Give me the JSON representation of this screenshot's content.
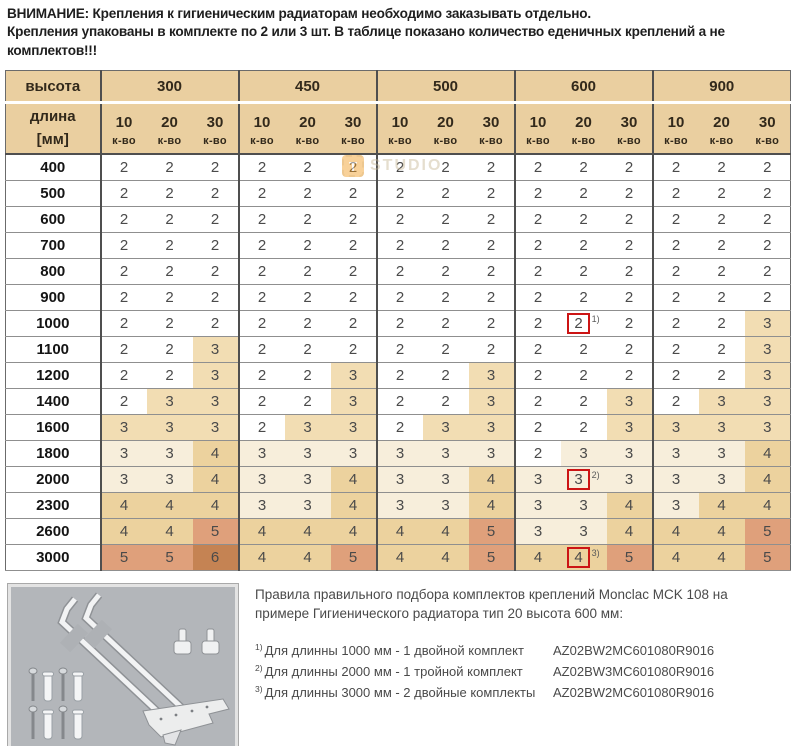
{
  "warning": {
    "line1": "ВНИМАНИЕ: Крепления к гигиеническим радиаторам необходимо заказывать отдельно.",
    "line2": "Крепления упакованы в комплекте по 2 или 3 шт. В таблице показано количество еденичных креплений а не комплектов!!!"
  },
  "watermark": {
    "letter": "T",
    "text": "STUDIO"
  },
  "table": {
    "corner": "высота",
    "row_head": {
      "label": "длина",
      "unit": "[мм]"
    },
    "groups": [
      "300",
      "450",
      "500",
      "600",
      "900"
    ],
    "subcols": [
      "10",
      "20",
      "30"
    ],
    "subunit": "к-во",
    "legend_colors": {
      "w": "#ffffff",
      "t": "#f2ddb3",
      "c": "#f7eedb",
      "d": "#ecd29e",
      "s": "#dfa07b",
      "b": "#c58353"
    },
    "mark_box_color": "#cc1414",
    "rows": [
      {
        "len": "400",
        "cells": [
          "2w",
          "2w",
          "2w",
          "2w",
          "2w",
          "2w",
          "2w",
          "2w",
          "2w",
          "2w",
          "2w",
          "2w",
          "2w",
          "2w",
          "2w"
        ]
      },
      {
        "len": "500",
        "cells": [
          "2w",
          "2w",
          "2w",
          "2w",
          "2w",
          "2w",
          "2w",
          "2w",
          "2w",
          "2w",
          "2w",
          "2w",
          "2w",
          "2w",
          "2w"
        ]
      },
      {
        "len": "600",
        "cells": [
          "2w",
          "2w",
          "2w",
          "2w",
          "2w",
          "2w",
          "2w",
          "2w",
          "2w",
          "2w",
          "2w",
          "2w",
          "2w",
          "2w",
          "2w"
        ]
      },
      {
        "len": "700",
        "cells": [
          "2w",
          "2w",
          "2w",
          "2w",
          "2w",
          "2w",
          "2w",
          "2w",
          "2w",
          "2w",
          "2w",
          "2w",
          "2w",
          "2w",
          "2w"
        ]
      },
      {
        "len": "800",
        "cells": [
          "2w",
          "2w",
          "2w",
          "2w",
          "2w",
          "2w",
          "2w",
          "2w",
          "2w",
          "2w",
          "2w",
          "2w",
          "2w",
          "2w",
          "2w"
        ]
      },
      {
        "len": "900",
        "cells": [
          "2w",
          "2w",
          "2w",
          "2w",
          "2w",
          "2w",
          "2w",
          "2w",
          "2w",
          "2w",
          "2w",
          "2w",
          "2w",
          "2w",
          "2w"
        ]
      },
      {
        "len": "1000",
        "cells": [
          "2w",
          "2w",
          "2w",
          "2w",
          "2w",
          "2w",
          "2w",
          "2w",
          "2w",
          "2w",
          "2w!1",
          "2w",
          "2w",
          "2w",
          "3t"
        ]
      },
      {
        "len": "1100",
        "cells": [
          "2w",
          "2w",
          "3t",
          "2w",
          "2w",
          "2w",
          "2w",
          "2w",
          "2w",
          "2w",
          "2w",
          "2w",
          "2w",
          "2w",
          "3t"
        ]
      },
      {
        "len": "1200",
        "cells": [
          "2w",
          "2w",
          "3t",
          "2w",
          "2w",
          "3t",
          "2w",
          "2w",
          "3t",
          "2w",
          "2w",
          "2w",
          "2w",
          "2w",
          "3t"
        ]
      },
      {
        "len": "1400",
        "cells": [
          "2w",
          "3t",
          "3t",
          "2w",
          "2w",
          "3t",
          "2w",
          "2w",
          "3t",
          "2w",
          "2w",
          "3t",
          "2w",
          "3t",
          "3t"
        ]
      },
      {
        "len": "1600",
        "cells": [
          "3t",
          "3t",
          "3t",
          "2w",
          "3t",
          "3t",
          "2w",
          "3t",
          "3t",
          "2w",
          "2w",
          "3t",
          "3t",
          "3t",
          "3t"
        ]
      },
      {
        "len": "1800",
        "cells": [
          "3c",
          "3c",
          "4d",
          "3c",
          "3c",
          "3c",
          "3c",
          "3c",
          "3c",
          "2w",
          "3c",
          "3c",
          "3c",
          "3c",
          "4d"
        ]
      },
      {
        "len": "2000",
        "cells": [
          "3c",
          "3c",
          "4d",
          "3c",
          "3c",
          "4d",
          "3c",
          "3c",
          "4d",
          "3c",
          "3c!2",
          "3c",
          "3c",
          "3c",
          "4d"
        ]
      },
      {
        "len": "2300",
        "cells": [
          "4d",
          "4d",
          "4d",
          "3c",
          "3c",
          "4d",
          "3c",
          "3c",
          "4d",
          "3c",
          "3c",
          "4d",
          "3c",
          "4d",
          "4d"
        ]
      },
      {
        "len": "2600",
        "cells": [
          "4d",
          "4d",
          "5s",
          "4d",
          "4d",
          "4d",
          "4d",
          "4d",
          "5s",
          "3c",
          "3c",
          "4d",
          "4d",
          "4d",
          "5s"
        ]
      },
      {
        "len": "3000",
        "cells": [
          "5s",
          "5s",
          "6b",
          "4d",
          "4d",
          "5s",
          "4d",
          "4d",
          "5s",
          "4d",
          "4d!3",
          "5s",
          "4d",
          "4d",
          "5s"
        ]
      }
    ]
  },
  "notes": {
    "title_line1": "Правила правильного подбора комплектов креплений Monclac MCK 108 на",
    "title_line2": "примере Гигиенического радиатора тип 20 высота 600 мм:",
    "items": [
      {
        "sup": "1)",
        "text": "Для длинны 1000 мм - 1 двойной комплект",
        "code": "AZ02BW2MC601080R9016"
      },
      {
        "sup": "2)",
        "text": "Для длинны 2000 мм - 1 тройной комплект",
        "code": "AZ02BW3MC601080R9016"
      },
      {
        "sup": "3)",
        "text": "Для длинны 3000 мм - 2 двойные комплекты",
        "code": "AZ02BW2MC601080R9016"
      }
    ]
  }
}
